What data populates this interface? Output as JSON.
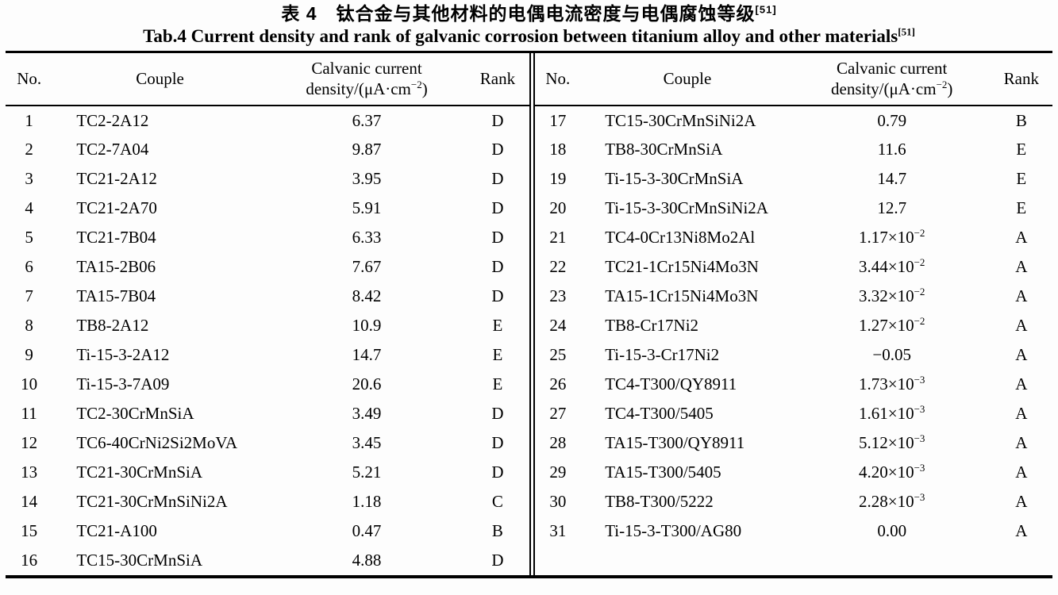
{
  "page": {
    "background": "#fdfdfd",
    "text_color": "#000000",
    "rule_color": "#000000"
  },
  "title": {
    "zh": "表 4　钛合金与其他材料的电偶电流密度与电偶腐蚀等级",
    "zh_ref": "[51]",
    "en": "Tab.4 Current density and rank of galvanic corrosion between titanium alloy and other materials",
    "en_ref": "[51]"
  },
  "table": {
    "headers": {
      "no": "No.",
      "couple": "Couple",
      "density_line1": "Calvanic current",
      "density_line2_pre": "density/(μA·cm",
      "density_sup": "−2",
      "density_line2_post": ")",
      "rank": "Rank"
    },
    "left_rows": [
      {
        "no": "1",
        "couple": "TC2-2A12",
        "density": "6.37",
        "density_exp": "",
        "rank": "D"
      },
      {
        "no": "2",
        "couple": "TC2-7A04",
        "density": "9.87",
        "density_exp": "",
        "rank": "D"
      },
      {
        "no": "3",
        "couple": "TC21-2A12",
        "density": "3.95",
        "density_exp": "",
        "rank": "D"
      },
      {
        "no": "4",
        "couple": "TC21-2A70",
        "density": "5.91",
        "density_exp": "",
        "rank": "D"
      },
      {
        "no": "5",
        "couple": "TC21-7B04",
        "density": "6.33",
        "density_exp": "",
        "rank": "D"
      },
      {
        "no": "6",
        "couple": "TA15-2B06",
        "density": "7.67",
        "density_exp": "",
        "rank": "D"
      },
      {
        "no": "7",
        "couple": "TA15-7B04",
        "density": "8.42",
        "density_exp": "",
        "rank": "D"
      },
      {
        "no": "8",
        "couple": "TB8-2A12",
        "density": "10.9",
        "density_exp": "",
        "rank": "E"
      },
      {
        "no": "9",
        "couple": "Ti-15-3-2A12",
        "density": "14.7",
        "density_exp": "",
        "rank": "E"
      },
      {
        "no": "10",
        "couple": "Ti-15-3-7A09",
        "density": "20.6",
        "density_exp": "",
        "rank": "E"
      },
      {
        "no": "11",
        "couple": "TC2-30CrMnSiA",
        "density": "3.49",
        "density_exp": "",
        "rank": "D"
      },
      {
        "no": "12",
        "couple": "TC6-40CrNi2Si2MoVA",
        "density": "3.45",
        "density_exp": "",
        "rank": "D"
      },
      {
        "no": "13",
        "couple": "TC21-30CrMnSiA",
        "density": "5.21",
        "density_exp": "",
        "rank": "D"
      },
      {
        "no": "14",
        "couple": "TC21-30CrMnSiNi2A",
        "density": "1.18",
        "density_exp": "",
        "rank": "C"
      },
      {
        "no": "15",
        "couple": "TC21-A100",
        "density": "0.47",
        "density_exp": "",
        "rank": "B"
      },
      {
        "no": "16",
        "couple": "TC15-30CrMnSiA",
        "density": "4.88",
        "density_exp": "",
        "rank": "D"
      }
    ],
    "right_rows": [
      {
        "no": "17",
        "couple": "TC15-30CrMnSiNi2A",
        "density": "0.79",
        "density_exp": "",
        "rank": "B"
      },
      {
        "no": "18",
        "couple": "TB8-30CrMnSiA",
        "density": "11.6",
        "density_exp": "",
        "rank": "E"
      },
      {
        "no": "19",
        "couple": "Ti-15-3-30CrMnSiA",
        "density": "14.7",
        "density_exp": "",
        "rank": "E"
      },
      {
        "no": "20",
        "couple": "Ti-15-3-30CrMnSiNi2A",
        "density": "12.7",
        "density_exp": "",
        "rank": "E"
      },
      {
        "no": "21",
        "couple": "TC4-0Cr13Ni8Mo2Al",
        "density": "1.17×10",
        "density_exp": "−2",
        "rank": "A"
      },
      {
        "no": "22",
        "couple": "TC21-1Cr15Ni4Mo3N",
        "density": "3.44×10",
        "density_exp": "−2",
        "rank": "A"
      },
      {
        "no": "23",
        "couple": "TA15-1Cr15Ni4Mo3N",
        "density": "3.32×10",
        "density_exp": "−2",
        "rank": "A"
      },
      {
        "no": "24",
        "couple": "TB8-Cr17Ni2",
        "density": "1.27×10",
        "density_exp": "−2",
        "rank": "A"
      },
      {
        "no": "25",
        "couple": "Ti-15-3-Cr17Ni2",
        "density": "−0.05",
        "density_exp": "",
        "rank": "A"
      },
      {
        "no": "26",
        "couple": "TC4-T300/QY8911",
        "density": "1.73×10",
        "density_exp": "−3",
        "rank": "A"
      },
      {
        "no": "27",
        "couple": "TC4-T300/5405",
        "density": "1.61×10",
        "density_exp": "−3",
        "rank": "A"
      },
      {
        "no": "28",
        "couple": "TA15-T300/QY8911",
        "density": "5.12×10",
        "density_exp": "−3",
        "rank": "A"
      },
      {
        "no": "29",
        "couple": "TA15-T300/5405",
        "density": "4.20×10",
        "density_exp": "−3",
        "rank": "A"
      },
      {
        "no": "30",
        "couple": "TB8-T300/5222",
        "density": "2.28×10",
        "density_exp": "−3",
        "rank": "A"
      },
      {
        "no": "31",
        "couple": "Ti-15-3-T300/AG80",
        "density": "0.00",
        "density_exp": "",
        "rank": "A"
      }
    ]
  }
}
